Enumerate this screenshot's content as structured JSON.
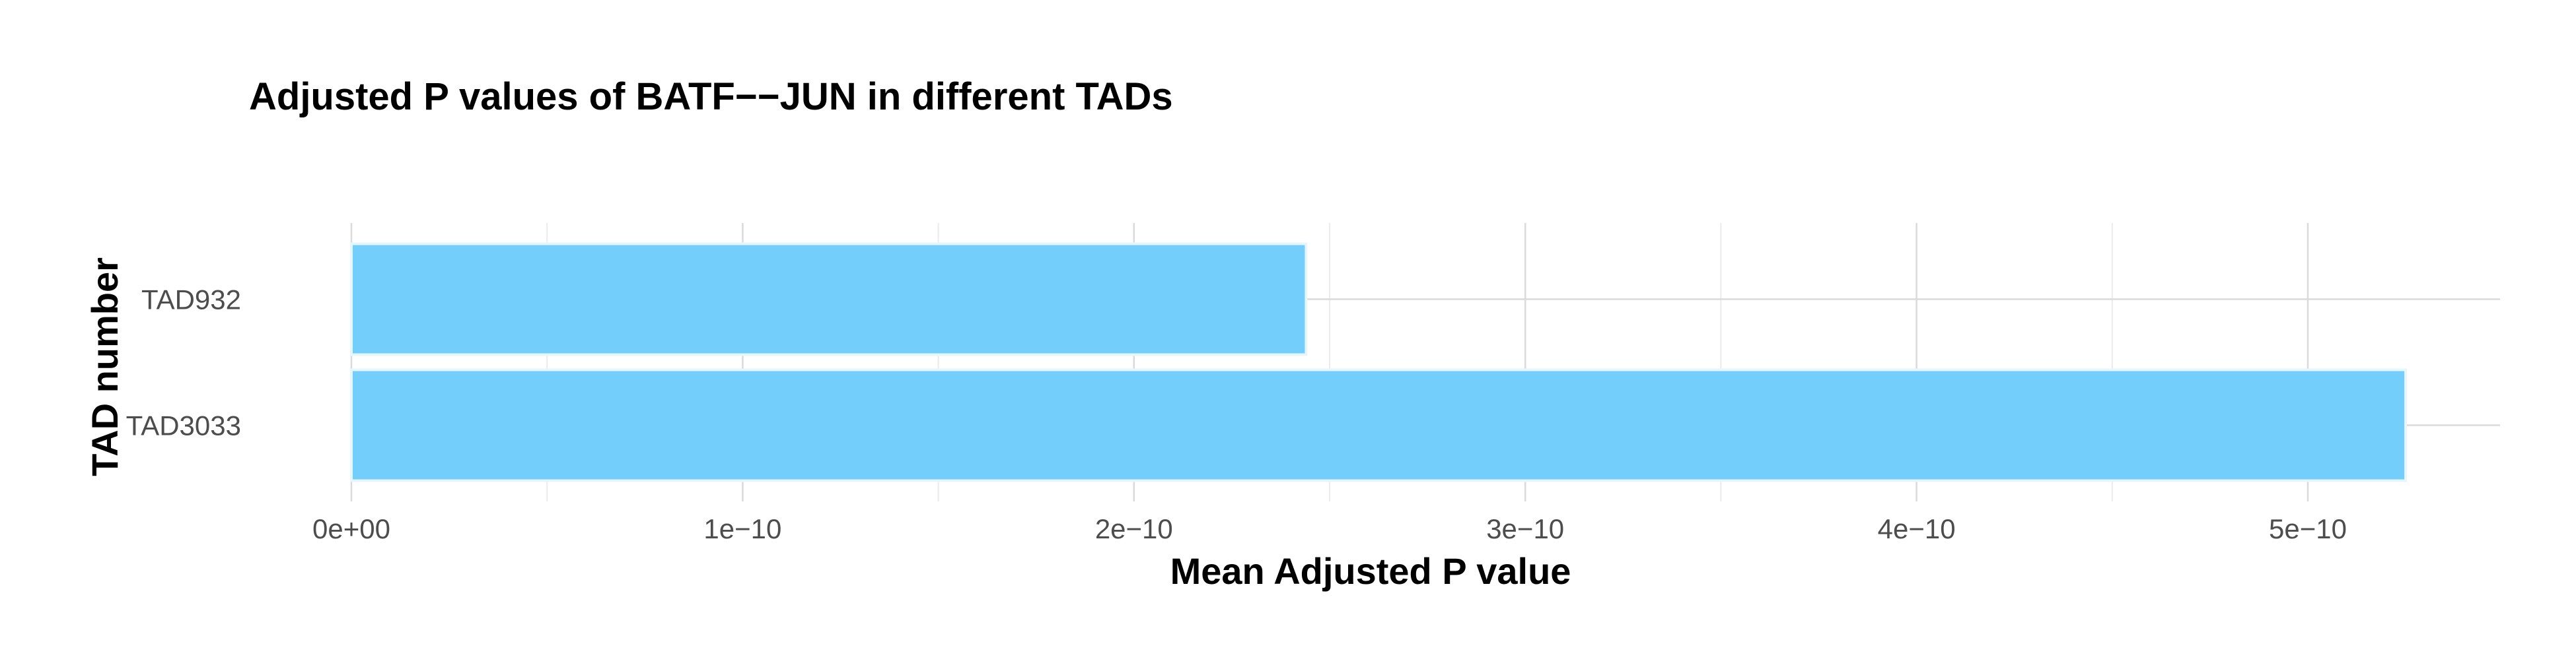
{
  "chart_data": {
    "type": "bar",
    "orientation": "horizontal",
    "title": "Adjusted P values of BATF−−JUN in different TADs",
    "xlabel": "Mean Adjusted P value",
    "ylabel": "TAD number",
    "categories": [
      "TAD932",
      "TAD3033"
    ],
    "values": [
      2.44e-10,
      5.25e-10
    ],
    "xlim": [
      0,
      5.5e-10
    ],
    "x_ticks": [
      0,
      1e-10,
      2e-10,
      3e-10,
      4e-10,
      5e-10
    ],
    "x_tick_labels": [
      "0e+00",
      "1e−10",
      "2e−10",
      "3e−10",
      "4e−10",
      "5e−10"
    ],
    "grid": true,
    "legend": "none",
    "colors": {
      "bar_fill": "#74CEFC",
      "bar_outline": "#E6F6FF",
      "grid_major": "#DADADA",
      "grid_minor": "#EBEBEB"
    }
  }
}
